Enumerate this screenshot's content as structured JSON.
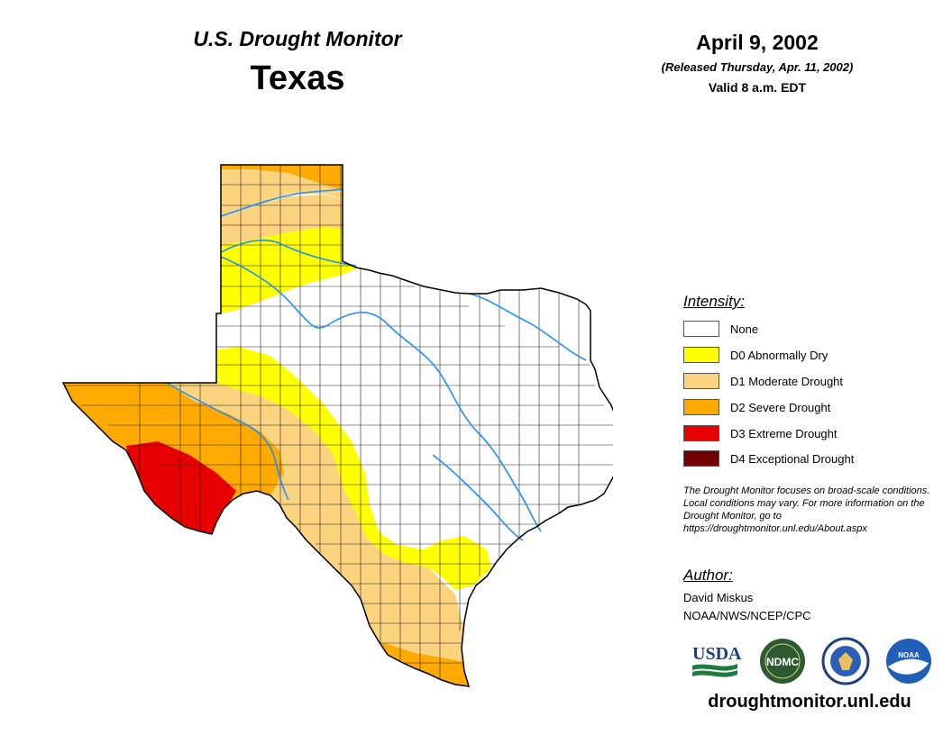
{
  "header": {
    "title": "U.S. Drought Monitor",
    "state": "Texas",
    "date": "April 9, 2002",
    "released": "(Released Thursday, Apr. 11, 2002)",
    "valid": "Valid 8 a.m. EDT"
  },
  "legend": {
    "title": "Intensity:",
    "items": [
      {
        "label": "None",
        "color": "#ffffff"
      },
      {
        "label": "D0 Abnormally Dry",
        "color": "#ffff00"
      },
      {
        "label": "D1 Moderate Drought",
        "color": "#fcd37f"
      },
      {
        "label": "D2 Severe Drought",
        "color": "#ffaa00"
      },
      {
        "label": "D3 Extreme Drought",
        "color": "#e60000"
      },
      {
        "label": "D4 Exceptional Drought",
        "color": "#730000"
      }
    ]
  },
  "note": "The Drought Monitor focuses on broad-scale conditions. Local conditions may vary. For more information on the Drought Monitor, go to https://droughtmonitor.unl.edu/About.aspx",
  "author": {
    "title": "Author:",
    "name": "David Miskus",
    "org": "NOAA/NWS/NCEP/CPC"
  },
  "logos": [
    {
      "name": "usda-logo",
      "text": "USDA"
    },
    {
      "name": "ndmc-logo",
      "text": "NDMC"
    },
    {
      "name": "doc-logo",
      "text": ""
    },
    {
      "name": "noaa-logo",
      "text": "NOAA"
    }
  ],
  "url": "droughtmonitor.unl.edu"
}
